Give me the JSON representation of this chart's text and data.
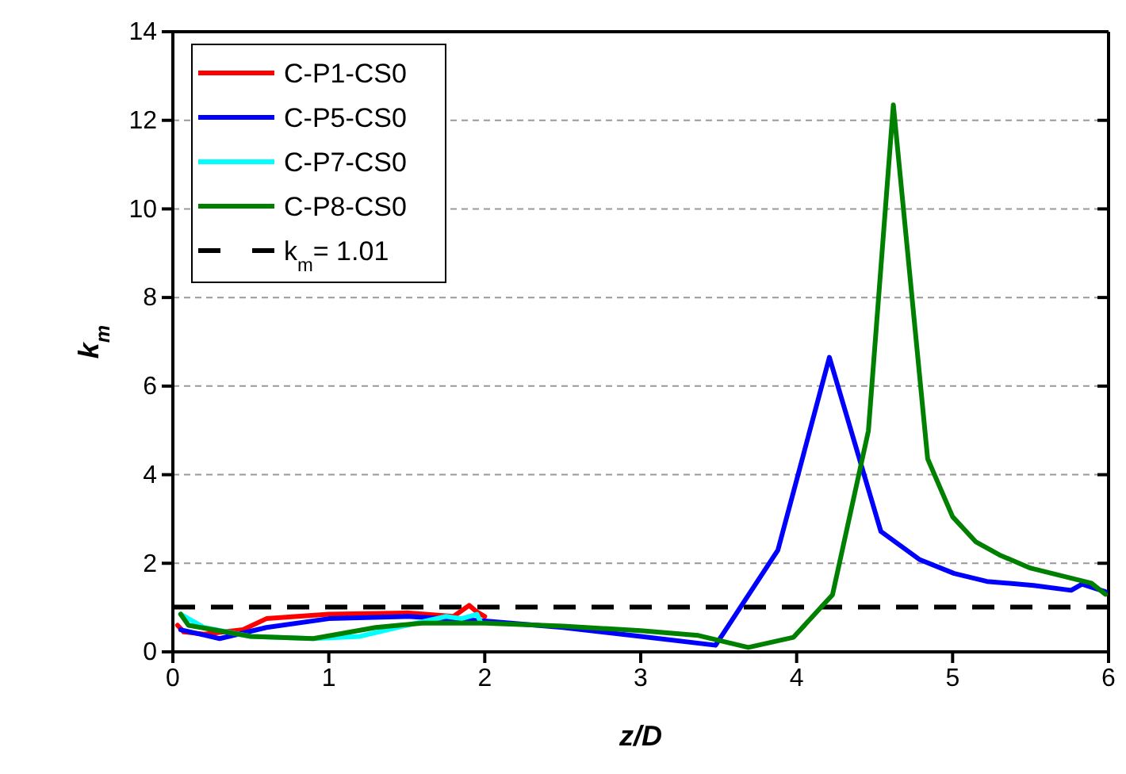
{
  "chart_data": {
    "type": "line",
    "xlabel": "z/D",
    "ylabel": "k$_{m}$",
    "xlim": [
      0,
      6
    ],
    "xticks": [
      0,
      1,
      2,
      3,
      4,
      5,
      6
    ],
    "ylim": [
      0,
      14
    ],
    "yticks": [
      0,
      2,
      4,
      6,
      8,
      10,
      12,
      14
    ],
    "grid": "y",
    "legend": "top left",
    "line_style": "solid",
    "marker": "none",
    "series": [
      {
        "name": "C-P1-CS0",
        "color": "#ff0000",
        "x": [
          0.03,
          0.07,
          0.2,
          0.45,
          0.6,
          1.0,
          1.5,
          1.8,
          1.9,
          1.95,
          2.0
        ],
        "values": [
          0.6,
          0.45,
          0.4,
          0.5,
          0.75,
          0.85,
          0.88,
          0.8,
          1.05,
          0.9,
          0.8
        ]
      },
      {
        "name": "C-P5-CS0",
        "color": "#0000ff",
        "x": [
          0.05,
          0.3,
          0.6,
          1.0,
          1.5,
          2.0,
          2.5,
          3.0,
          3.48,
          3.88,
          4.21,
          4.54,
          4.79,
          5.01,
          5.22,
          5.52,
          5.76,
          5.83,
          5.98
        ],
        "values": [
          0.5,
          0.3,
          0.55,
          0.75,
          0.8,
          0.7,
          0.55,
          0.35,
          0.15,
          2.3,
          6.65,
          2.72,
          2.08,
          1.77,
          1.59,
          1.5,
          1.39,
          1.53,
          1.36
        ]
      },
      {
        "name": "C-P7-CS0",
        "color": "#00ffff",
        "x": [
          0.05,
          0.2,
          0.5,
          0.9,
          1.2,
          1.5,
          1.75,
          1.85,
          1.95,
          1.97
        ],
        "values": [
          0.85,
          0.55,
          0.35,
          0.3,
          0.35,
          0.6,
          0.8,
          0.75,
          0.85,
          0.7
        ]
      },
      {
        "name": "C-P8-CS0",
        "color": "#008000",
        "x": [
          0.05,
          0.1,
          0.5,
          0.9,
          1.3,
          1.6,
          2.0,
          2.5,
          3.0,
          3.37,
          3.69,
          3.98,
          4.23,
          4.46,
          4.62,
          4.84,
          5.0,
          5.15,
          5.3,
          5.5,
          5.89,
          5.98
        ],
        "values": [
          0.85,
          0.6,
          0.35,
          0.3,
          0.55,
          0.65,
          0.65,
          0.58,
          0.48,
          0.37,
          0.1,
          0.33,
          1.29,
          4.99,
          12.35,
          4.36,
          3.05,
          2.48,
          2.19,
          1.89,
          1.55,
          1.3
        ]
      }
    ],
    "ref_lines": [
      {
        "axis": "y",
        "value": 1.01,
        "label": "k$_{m}$= 1.01",
        "color": "#000000",
        "line_style": "dashed"
      }
    ]
  }
}
